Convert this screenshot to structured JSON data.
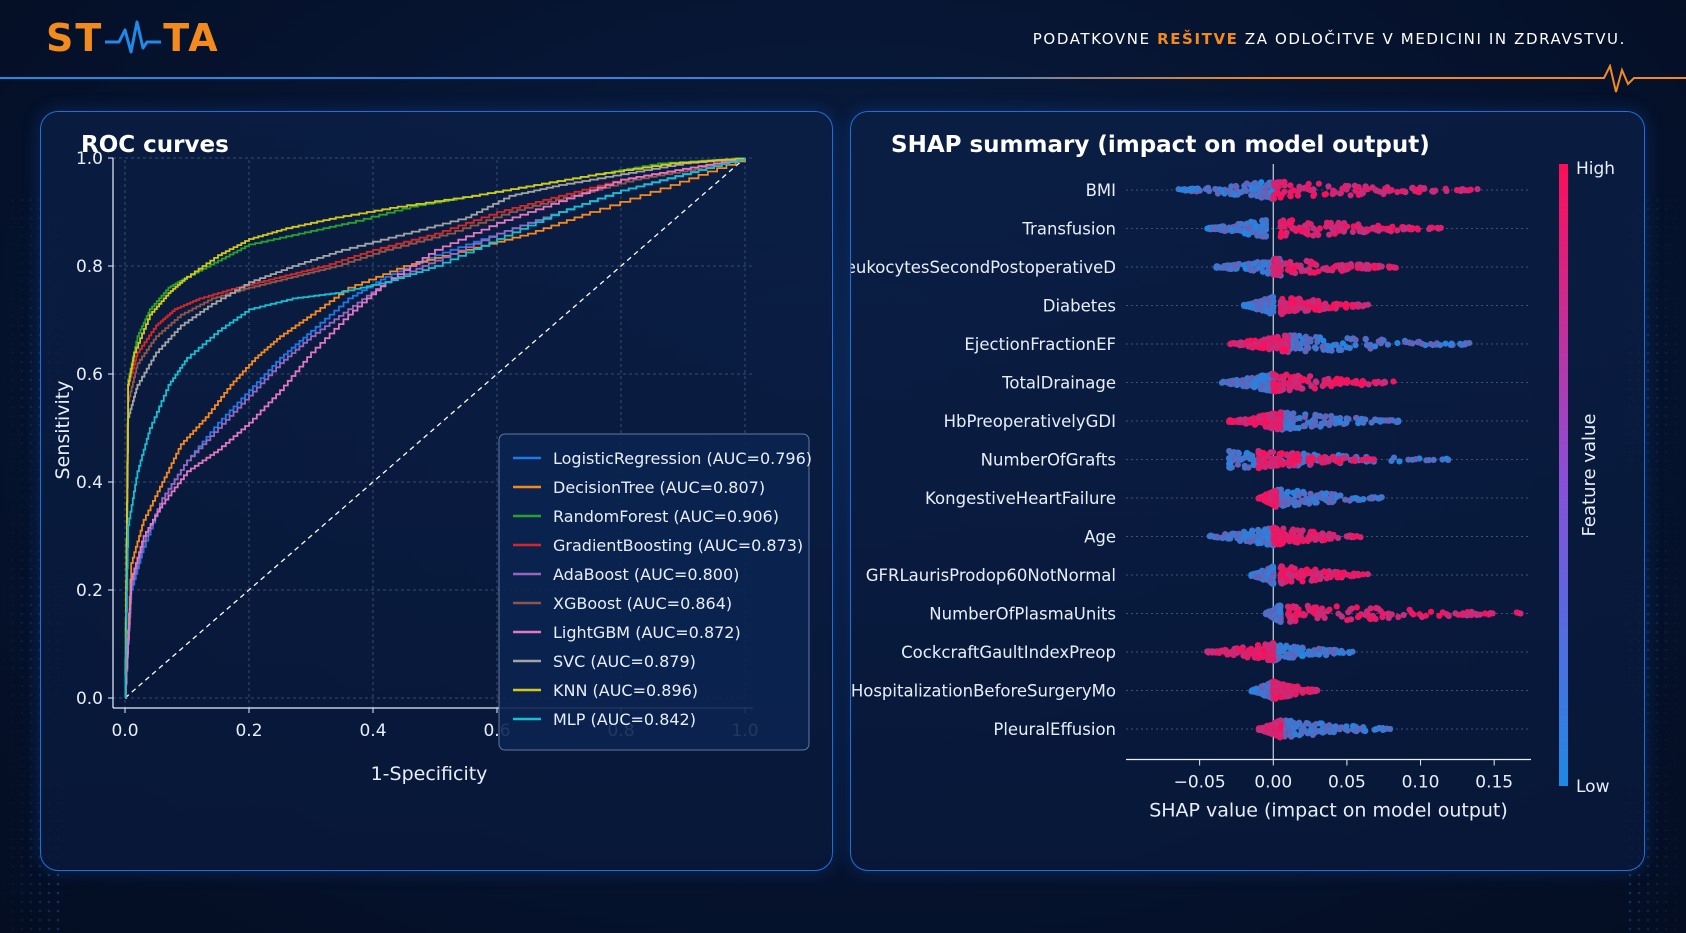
{
  "header": {
    "logo_text_left": "ST",
    "logo_text_right": "TA",
    "tagline_before": "PODATKOVNE ",
    "tagline_accent": "REŠITVE",
    "tagline_after": " ZA ODLOČITVE V MEDICINI IN ZDRAVSTVU."
  },
  "colors": {
    "accent_orange": "#f28a1e",
    "accent_blue": "#1f8ae8",
    "panel_border": "#1f6fd8"
  },
  "chart_data": [
    {
      "type": "line",
      "title": "ROC curves",
      "xlabel": "1-Specificity",
      "ylabel": "Sensitivity",
      "xlim": [
        0,
        1
      ],
      "ylim": [
        0,
        1
      ],
      "xticks": [
        "0.0",
        "0.2",
        "0.4",
        "0.6",
        "0.8",
        "1.0"
      ],
      "yticks": [
        "0.0",
        "0.2",
        "0.4",
        "0.6",
        "0.8",
        "1.0"
      ],
      "grid": true,
      "legend_position": "bottom-right",
      "diagonal_reference": true,
      "series": [
        {
          "name": "LogisticRegression (AUC=0.796)",
          "color": "#1f77e8",
          "points": [
            [
              0,
              0
            ],
            [
              0.01,
              0.2
            ],
            [
              0.03,
              0.28
            ],
            [
              0.06,
              0.37
            ],
            [
              0.1,
              0.44
            ],
            [
              0.15,
              0.51
            ],
            [
              0.2,
              0.57
            ],
            [
              0.25,
              0.63
            ],
            [
              0.3,
              0.68
            ],
            [
              0.36,
              0.74
            ],
            [
              0.42,
              0.78
            ],
            [
              0.5,
              0.82
            ],
            [
              0.6,
              0.86
            ],
            [
              0.7,
              0.9
            ],
            [
              0.8,
              0.94
            ],
            [
              0.9,
              0.97
            ],
            [
              1,
              1
            ]
          ]
        },
        {
          "name": "DecisionTree (AUC=0.807)",
          "color": "#f5891f",
          "points": [
            [
              0,
              0
            ],
            [
              0.01,
              0.25
            ],
            [
              0.03,
              0.33
            ],
            [
              0.06,
              0.4
            ],
            [
              0.09,
              0.47
            ],
            [
              0.13,
              0.52
            ],
            [
              0.17,
              0.58
            ],
            [
              0.21,
              0.63
            ],
            [
              0.25,
              0.67
            ],
            [
              0.3,
              0.71
            ],
            [
              0.36,
              0.76
            ],
            [
              0.45,
              0.8
            ],
            [
              0.55,
              0.83
            ],
            [
              0.65,
              0.86
            ],
            [
              0.75,
              0.9
            ],
            [
              0.88,
              0.95
            ],
            [
              1,
              1
            ]
          ]
        },
        {
          "name": "RandomForest (AUC=0.906)",
          "color": "#2ca02c",
          "points": [
            [
              0,
              0
            ],
            [
              0.005,
              0.59
            ],
            [
              0.02,
              0.67
            ],
            [
              0.04,
              0.72
            ],
            [
              0.07,
              0.76
            ],
            [
              0.1,
              0.78
            ],
            [
              0.15,
              0.81
            ],
            [
              0.2,
              0.84
            ],
            [
              0.28,
              0.86
            ],
            [
              0.36,
              0.88
            ],
            [
              0.46,
              0.91
            ],
            [
              0.56,
              0.93
            ],
            [
              0.66,
              0.95
            ],
            [
              0.76,
              0.97
            ],
            [
              0.86,
              0.99
            ],
            [
              1,
              1
            ]
          ]
        },
        {
          "name": "GradientBoosting (AUC=0.873)",
          "color": "#d62728",
          "points": [
            [
              0,
              0
            ],
            [
              0.005,
              0.58
            ],
            [
              0.02,
              0.64
            ],
            [
              0.05,
              0.69
            ],
            [
              0.08,
              0.72
            ],
            [
              0.12,
              0.74
            ],
            [
              0.18,
              0.76
            ],
            [
              0.25,
              0.78
            ],
            [
              0.32,
              0.8
            ],
            [
              0.4,
              0.83
            ],
            [
              0.5,
              0.86
            ],
            [
              0.6,
              0.9
            ],
            [
              0.7,
              0.93
            ],
            [
              0.8,
              0.96
            ],
            [
              0.9,
              0.98
            ],
            [
              1,
              1
            ]
          ]
        },
        {
          "name": "AdaBoost (AUC=0.800)",
          "color": "#9467bd",
          "points": [
            [
              0,
              0
            ],
            [
              0.01,
              0.21
            ],
            [
              0.03,
              0.29
            ],
            [
              0.06,
              0.37
            ],
            [
              0.1,
              0.44
            ],
            [
              0.15,
              0.5
            ],
            [
              0.2,
              0.56
            ],
            [
              0.25,
              0.62
            ],
            [
              0.3,
              0.67
            ],
            [
              0.36,
              0.72
            ],
            [
              0.42,
              0.77
            ],
            [
              0.5,
              0.81
            ],
            [
              0.6,
              0.86
            ],
            [
              0.7,
              0.9
            ],
            [
              0.8,
              0.94
            ],
            [
              0.9,
              0.97
            ],
            [
              1,
              1
            ]
          ]
        },
        {
          "name": "XGBoost (AUC=0.864)",
          "color": "#8c564b",
          "points": [
            [
              0,
              0
            ],
            [
              0.005,
              0.55
            ],
            [
              0.02,
              0.62
            ],
            [
              0.05,
              0.67
            ],
            [
              0.09,
              0.71
            ],
            [
              0.14,
              0.74
            ],
            [
              0.2,
              0.76
            ],
            [
              0.27,
              0.78
            ],
            [
              0.34,
              0.8
            ],
            [
              0.42,
              0.83
            ],
            [
              0.52,
              0.86
            ],
            [
              0.62,
              0.9
            ],
            [
              0.72,
              0.93
            ],
            [
              0.82,
              0.96
            ],
            [
              0.92,
              0.98
            ],
            [
              1,
              1
            ]
          ]
        },
        {
          "name": "LightGBM (AUC=0.872)",
          "color": "#e377c2",
          "points": [
            [
              0,
              0
            ],
            [
              0.01,
              0.22
            ],
            [
              0.03,
              0.3
            ],
            [
              0.06,
              0.36
            ],
            [
              0.1,
              0.42
            ],
            [
              0.15,
              0.46
            ],
            [
              0.2,
              0.51
            ],
            [
              0.25,
              0.57
            ],
            [
              0.3,
              0.64
            ],
            [
              0.36,
              0.71
            ],
            [
              0.42,
              0.77
            ],
            [
              0.5,
              0.83
            ],
            [
              0.6,
              0.88
            ],
            [
              0.7,
              0.92
            ],
            [
              0.8,
              0.96
            ],
            [
              0.9,
              0.98
            ],
            [
              1,
              1
            ]
          ]
        },
        {
          "name": "SVC (AUC=0.879)",
          "color": "#a3a3a3",
          "points": [
            [
              0,
              0
            ],
            [
              0.005,
              0.52
            ],
            [
              0.02,
              0.58
            ],
            [
              0.05,
              0.64
            ],
            [
              0.09,
              0.69
            ],
            [
              0.14,
              0.73
            ],
            [
              0.2,
              0.77
            ],
            [
              0.27,
              0.8
            ],
            [
              0.35,
              0.83
            ],
            [
              0.45,
              0.86
            ],
            [
              0.55,
              0.89
            ],
            [
              0.62,
              0.93
            ],
            [
              0.7,
              0.95
            ],
            [
              0.8,
              0.97
            ],
            [
              0.9,
              0.99
            ],
            [
              1,
              1
            ]
          ]
        },
        {
          "name": "KNN (AUC=0.896)",
          "color": "#d4c91a",
          "points": [
            [
              0,
              0
            ],
            [
              0.005,
              0.58
            ],
            [
              0.015,
              0.64
            ],
            [
              0.04,
              0.71
            ],
            [
              0.07,
              0.75
            ],
            [
              0.1,
              0.78
            ],
            [
              0.15,
              0.82
            ],
            [
              0.2,
              0.85
            ],
            [
              0.26,
              0.87
            ],
            [
              0.34,
              0.89
            ],
            [
              0.44,
              0.91
            ],
            [
              0.56,
              0.93
            ],
            [
              0.66,
              0.95
            ],
            [
              0.76,
              0.97
            ],
            [
              0.88,
              0.99
            ],
            [
              1,
              1
            ]
          ]
        },
        {
          "name": "MLP (AUC=0.842)",
          "color": "#17becf",
          "points": [
            [
              0,
              0
            ],
            [
              0.005,
              0.32
            ],
            [
              0.02,
              0.42
            ],
            [
              0.04,
              0.5
            ],
            [
              0.07,
              0.58
            ],
            [
              0.1,
              0.63
            ],
            [
              0.15,
              0.68
            ],
            [
              0.2,
              0.72
            ],
            [
              0.27,
              0.74
            ],
            [
              0.34,
              0.75
            ],
            [
              0.42,
              0.77
            ],
            [
              0.5,
              0.8
            ],
            [
              0.6,
              0.85
            ],
            [
              0.7,
              0.9
            ],
            [
              0.8,
              0.94
            ],
            [
              0.9,
              0.97
            ],
            [
              1,
              1
            ]
          ]
        }
      ]
    },
    {
      "type": "scatter",
      "title": "SHAP summary (impact on model output)",
      "xlabel": "SHAP value (impact on model output)",
      "xlim": [
        -0.1,
        0.175
      ],
      "xticks": [
        "−0.05",
        "0.00",
        "0.05",
        "0.10",
        "0.15"
      ],
      "colorbar": {
        "label": "Feature value",
        "high": "High",
        "low": "Low",
        "high_color": "#ff0d57",
        "low_color": "#1e88e5"
      },
      "features": [
        {
          "name": "BMI",
          "low_range": [
            -0.065,
            0.0
          ],
          "high_range": [
            0.0,
            0.14
          ]
        },
        {
          "name": "Transfusion",
          "low_range": [
            -0.045,
            -0.005
          ],
          "high_range": [
            0.005,
            0.115
          ]
        },
        {
          "name": "LeukocytesSecondPostoperativeD",
          "low_range": [
            -0.04,
            0.005
          ],
          "high_range": [
            0.0,
            0.085
          ]
        },
        {
          "name": "Diabetes",
          "low_range": [
            -0.02,
            0.0
          ],
          "high_range": [
            0.005,
            0.065
          ]
        },
        {
          "name": "EjectionFractionEF",
          "low_range": [
            0.01,
            0.135
          ],
          "high_range": [
            -0.03,
            0.01
          ]
        },
        {
          "name": "TotalDrainage",
          "low_range": [
            -0.035,
            0.0
          ],
          "high_range": [
            0.0,
            0.085
          ]
        },
        {
          "name": "HbPreoperativelyGDI",
          "low_range": [
            0.005,
            0.085
          ],
          "high_range": [
            -0.03,
            0.005
          ]
        },
        {
          "name": "NumberOfGrafts",
          "low_range": [
            -0.03,
            0.12
          ],
          "high_range": [
            -0.01,
            0.07
          ]
        },
        {
          "name": "KongestiveHeartFailure",
          "low_range": [
            0.002,
            0.075
          ],
          "high_range": [
            -0.01,
            0.002
          ]
        },
        {
          "name": "Age",
          "low_range": [
            -0.045,
            0.0
          ],
          "high_range": [
            0.0,
            0.06
          ]
        },
        {
          "name": "GFRLaurisProdop60NotNormal",
          "low_range": [
            -0.015,
            0.0
          ],
          "high_range": [
            0.005,
            0.065
          ]
        },
        {
          "name": "NumberOfPlasmaUnits",
          "low_range": [
            -0.005,
            0.005
          ],
          "high_range": [
            0.01,
            0.17
          ]
        },
        {
          "name": "CockcraftGaultIndexPreop",
          "low_range": [
            0.0,
            0.055
          ],
          "high_range": [
            -0.045,
            0.0
          ]
        },
        {
          "name": "HospitalizationBeforeSurgeryMo",
          "low_range": [
            -0.015,
            0.0
          ],
          "high_range": [
            0.0,
            0.03
          ]
        },
        {
          "name": "PleuralEffusion",
          "low_range": [
            0.005,
            0.08
          ],
          "high_range": [
            -0.01,
            0.005
          ]
        }
      ]
    }
  ]
}
